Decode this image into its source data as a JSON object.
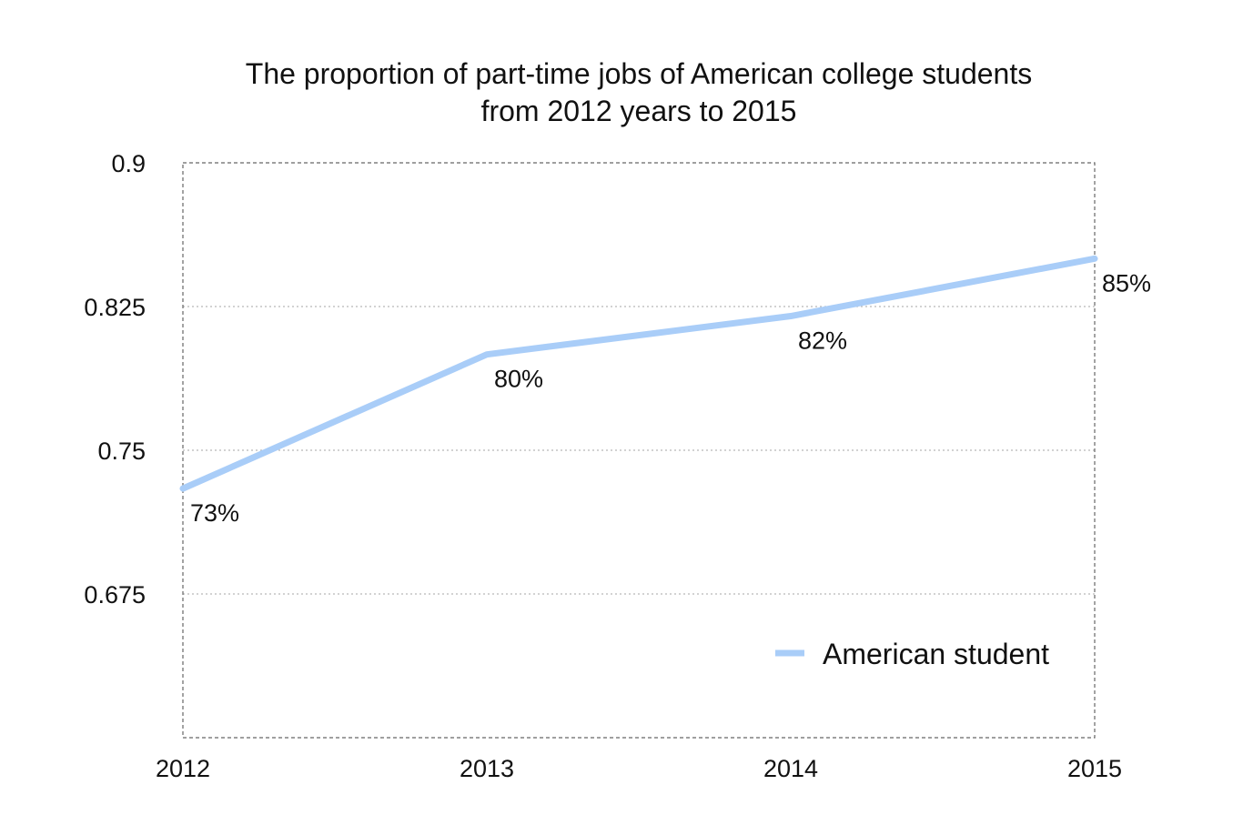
{
  "chart_data": {
    "type": "line",
    "title_lines": [
      "The proportion of part-time jobs of American college students",
      "from 2012 years to 2015"
    ],
    "xlabel": "",
    "ylabel": "",
    "categories": [
      "2012",
      "2013",
      "2014",
      "2015"
    ],
    "series": [
      {
        "name": "American student",
        "values": [
          0.73,
          0.8,
          0.82,
          0.85
        ],
        "labels": [
          "73%",
          "80%",
          "82%",
          "85%"
        ],
        "color": "#a9cdf8"
      }
    ],
    "ylim": [
      0.6,
      0.9
    ],
    "yticks": [
      0.675,
      0.75,
      0.825,
      0.9
    ],
    "ytick_labels": [
      "0.675",
      "0.75",
      "0.825",
      "0.9"
    ],
    "grid": true,
    "legend_position": "bottom-right"
  }
}
